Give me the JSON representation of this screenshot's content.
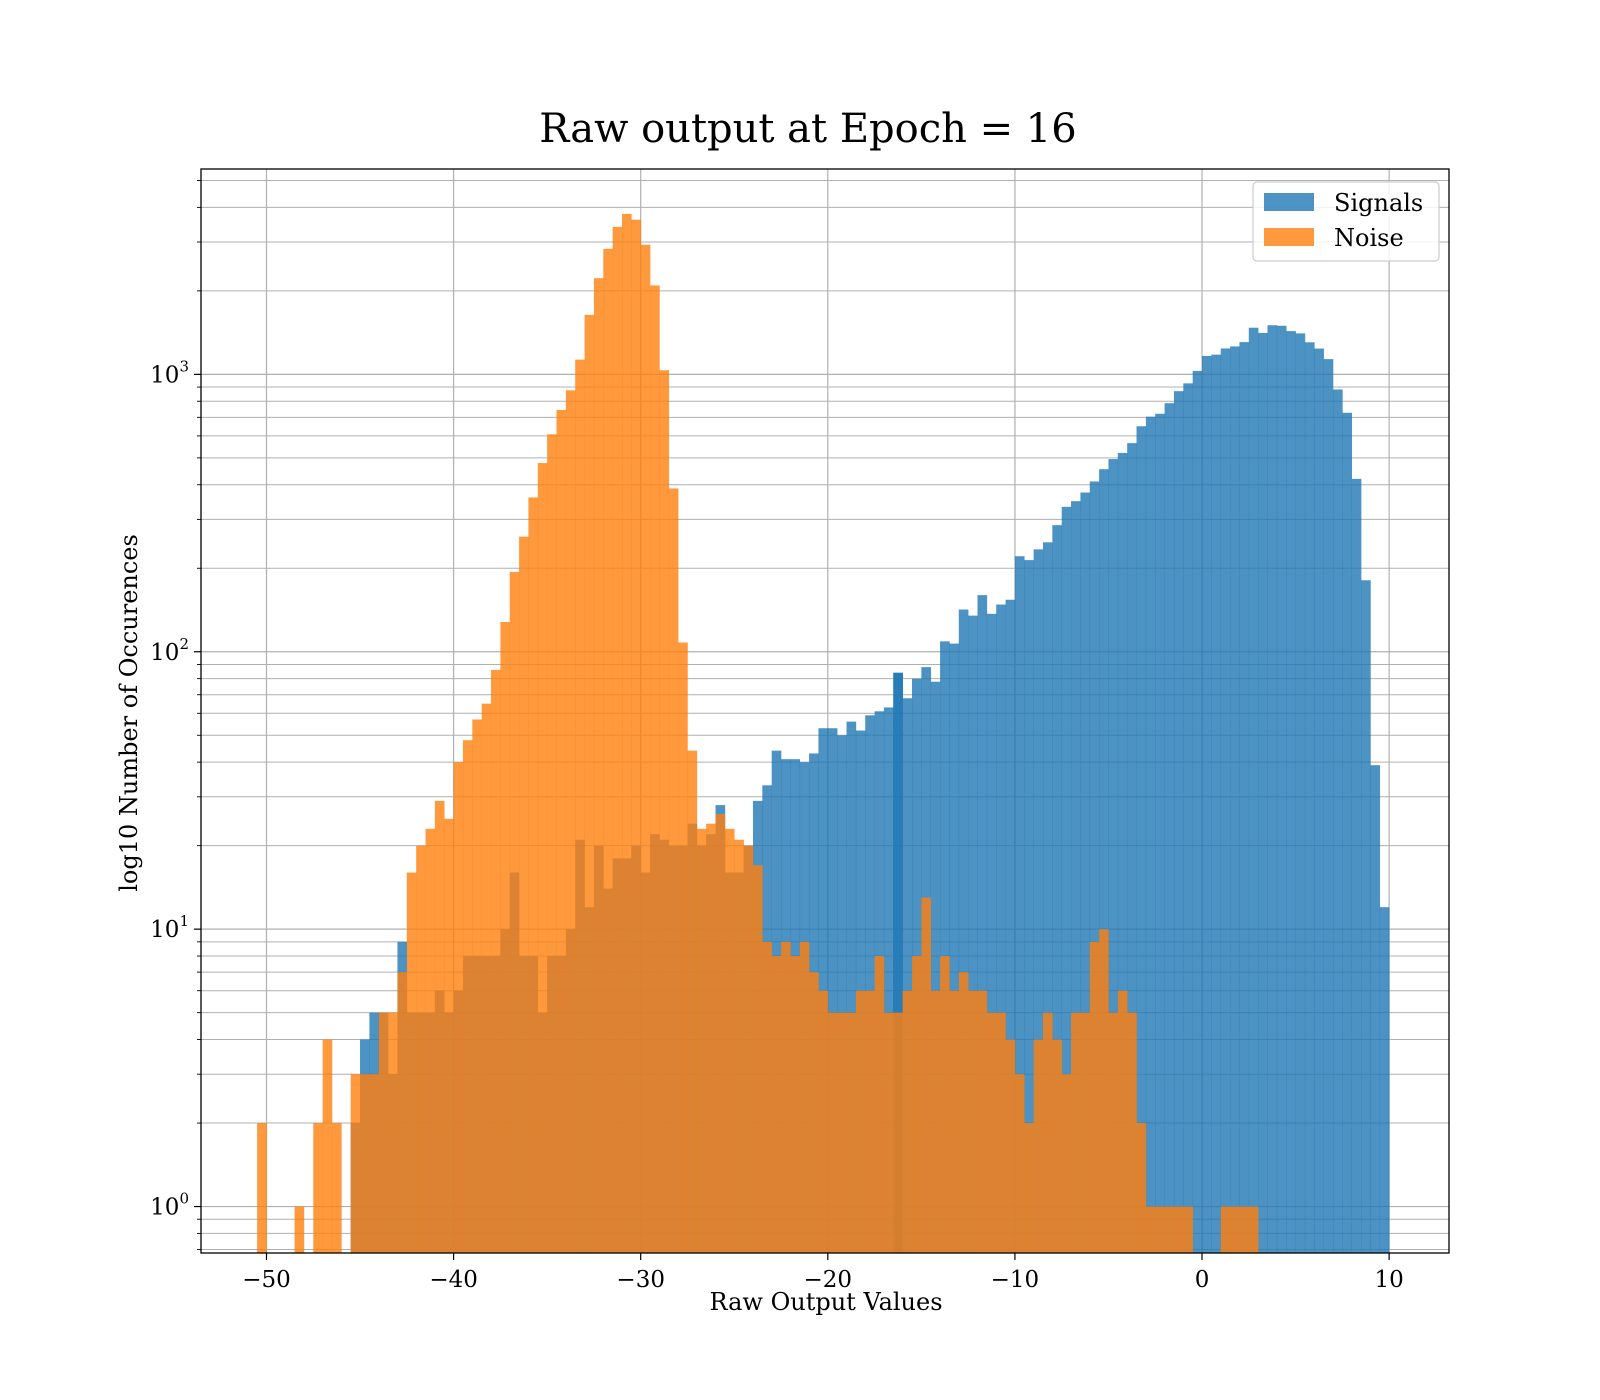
{
  "chart_data": {
    "type": "bar",
    "subtype": "overlaid-histogram",
    "title": "Raw output at Epoch = 16",
    "xlabel": "Raw Output Values",
    "ylabel": "log10 Number of Occurences",
    "xlim": [
      -53.5,
      13.2
    ],
    "ylim": [
      0.68,
      5500
    ],
    "yscale": "log",
    "grid": true,
    "legend_position": "top-right",
    "x_ticks": [
      {
        "value": -50,
        "label": "−50"
      },
      {
        "value": -40,
        "label": "−40"
      },
      {
        "value": -30,
        "label": "−30"
      },
      {
        "value": -20,
        "label": "−20"
      },
      {
        "value": -10,
        "label": "−10"
      },
      {
        "value": 0,
        "label": "0"
      },
      {
        "value": 10,
        "label": "10"
      }
    ],
    "y_ticks": [
      {
        "value": 1,
        "base": "10",
        "exp": "0"
      },
      {
        "value": 10,
        "base": "10",
        "exp": "1"
      },
      {
        "value": 100,
        "base": "10",
        "exp": "2"
      },
      {
        "value": 1000,
        "base": "10",
        "exp": "3"
      }
    ],
    "series": [
      {
        "name": "Signals",
        "color": "#1f77b4",
        "opacity": 0.8,
        "bins": [
          [
            -45.5,
            2
          ],
          [
            -45.0,
            4
          ],
          [
            -44.5,
            5
          ],
          [
            -44.0,
            5
          ],
          [
            -43.5,
            3
          ],
          [
            -43.0,
            9
          ],
          [
            -42.5,
            5
          ],
          [
            -42.0,
            5
          ],
          [
            -41.5,
            5
          ],
          [
            -41.0,
            6
          ],
          [
            -40.5,
            5
          ],
          [
            -40.0,
            6
          ],
          [
            -39.5,
            8
          ],
          [
            -39.0,
            8
          ],
          [
            -38.5,
            8
          ],
          [
            -38.0,
            8
          ],
          [
            -37.5,
            10
          ],
          [
            -37.0,
            16
          ],
          [
            -36.5,
            8
          ],
          [
            -36.0,
            8
          ],
          [
            -35.5,
            5
          ],
          [
            -35.0,
            8
          ],
          [
            -34.5,
            8
          ],
          [
            -34.0,
            10
          ],
          [
            -33.5,
            21
          ],
          [
            -33.0,
            12
          ],
          [
            -32.5,
            20
          ],
          [
            -32.0,
            14
          ],
          [
            -31.5,
            18
          ],
          [
            -31.0,
            18
          ],
          [
            -30.5,
            20
          ],
          [
            -30.0,
            16
          ],
          [
            -29.5,
            22
          ],
          [
            -29.0,
            21
          ],
          [
            -28.5,
            20
          ],
          [
            -28.0,
            20
          ],
          [
            -27.5,
            24
          ],
          [
            -27.0,
            20
          ],
          [
            -26.5,
            22
          ],
          [
            -26.0,
            28
          ],
          [
            -25.5,
            16
          ],
          [
            -25.0,
            16
          ],
          [
            -24.5,
            20
          ],
          [
            -24.0,
            29
          ],
          [
            -23.5,
            33
          ],
          [
            -23.0,
            44
          ],
          [
            -22.5,
            41
          ],
          [
            -22.0,
            41
          ],
          [
            -21.5,
            40
          ],
          [
            -21.0,
            43
          ],
          [
            -20.5,
            53
          ],
          [
            -20.0,
            53
          ],
          [
            -19.5,
            50
          ],
          [
            -19.0,
            56
          ],
          [
            -18.5,
            52
          ],
          [
            -18.0,
            59
          ],
          [
            -17.5,
            61
          ],
          [
            -17.0,
            63
          ],
          [
            -16.5,
            84
          ],
          [
            -16.5,
            84
          ],
          [
            -16.0,
            68
          ],
          [
            -15.5,
            80
          ],
          [
            -15.0,
            88
          ],
          [
            -14.5,
            78
          ],
          [
            -14.0,
            109
          ],
          [
            -13.5,
            107
          ],
          [
            -13.0,
            142
          ],
          [
            -12.5,
            135
          ],
          [
            -12.0,
            160
          ],
          [
            -11.5,
            137
          ],
          [
            -11.0,
            148
          ],
          [
            -10.5,
            154
          ],
          [
            -10.0,
            221
          ],
          [
            -9.5,
            214
          ],
          [
            -9.0,
            234
          ],
          [
            -8.5,
            248
          ],
          [
            -8.0,
            286
          ],
          [
            -7.5,
            333
          ],
          [
            -7.0,
            349
          ],
          [
            -6.5,
            375
          ],
          [
            -6.0,
            411
          ],
          [
            -5.5,
            455
          ],
          [
            -5.0,
            495
          ],
          [
            -4.5,
            521
          ],
          [
            -4.0,
            565
          ],
          [
            -3.5,
            650
          ],
          [
            -3.0,
            704
          ],
          [
            -2.5,
            721
          ],
          [
            -2.0,
            787
          ],
          [
            -1.5,
            870
          ],
          [
            -1.0,
            928
          ],
          [
            -0.5,
            1029
          ],
          [
            0.0,
            1165
          ],
          [
            0.5,
            1178
          ],
          [
            1.0,
            1240
          ],
          [
            1.5,
            1261
          ],
          [
            2.0,
            1307
          ],
          [
            2.5,
            1473
          ],
          [
            3.0,
            1410
          ],
          [
            3.5,
            1504
          ],
          [
            4.0,
            1497
          ],
          [
            4.5,
            1432
          ],
          [
            5.0,
            1405
          ],
          [
            5.5,
            1305
          ],
          [
            6.0,
            1239
          ],
          [
            6.5,
            1135
          ],
          [
            7.0,
            882
          ],
          [
            7.5,
            727
          ],
          [
            8.0,
            420
          ],
          [
            8.5,
            181
          ],
          [
            9.0,
            39
          ],
          [
            9.5,
            12
          ]
        ]
      },
      {
        "name": "Noise",
        "color": "#ff7f0e",
        "opacity": 0.8,
        "bins": [
          [
            -50.5,
            2
          ],
          [
            -48.5,
            1
          ],
          [
            -47.5,
            2
          ],
          [
            -47.0,
            4
          ],
          [
            -46.5,
            2
          ],
          [
            -45.5,
            3
          ],
          [
            -45.0,
            3
          ],
          [
            -44.5,
            3
          ],
          [
            -44.0,
            5
          ],
          [
            -43.5,
            5
          ],
          [
            -43.0,
            7
          ],
          [
            -42.5,
            16
          ],
          [
            -42.0,
            20
          ],
          [
            -41.5,
            23
          ],
          [
            -41.0,
            29
          ],
          [
            -40.5,
            25
          ],
          [
            -40.0,
            40
          ],
          [
            -39.5,
            48
          ],
          [
            -39.0,
            57
          ],
          [
            -38.5,
            65
          ],
          [
            -38.0,
            86
          ],
          [
            -37.5,
            128
          ],
          [
            -37.0,
            194
          ],
          [
            -36.5,
            260
          ],
          [
            -36.0,
            360
          ],
          [
            -35.5,
            479
          ],
          [
            -35.0,
            608
          ],
          [
            -34.5,
            744
          ],
          [
            -34.0,
            876
          ],
          [
            -33.5,
            1130
          ],
          [
            -33.0,
            1638
          ],
          [
            -32.5,
            2222
          ],
          [
            -32.0,
            2835
          ],
          [
            -31.5,
            3402
          ],
          [
            -31.0,
            3789
          ],
          [
            -30.5,
            3612
          ],
          [
            -30.0,
            2932
          ],
          [
            -29.5,
            2092
          ],
          [
            -29.0,
            1035
          ],
          [
            -28.5,
            388
          ],
          [
            -28.0,
            108
          ],
          [
            -27.5,
            44
          ],
          [
            -27.0,
            23
          ],
          [
            -26.5,
            24
          ],
          [
            -26.0,
            26
          ],
          [
            -25.5,
            23
          ],
          [
            -25.0,
            21
          ],
          [
            -24.5,
            20
          ],
          [
            -24.0,
            17
          ],
          [
            -23.5,
            9
          ],
          [
            -23.0,
            8
          ],
          [
            -22.5,
            9
          ],
          [
            -22.0,
            8
          ],
          [
            -21.5,
            9
          ],
          [
            -21.0,
            7
          ],
          [
            -20.5,
            6
          ],
          [
            -20.0,
            5
          ],
          [
            -19.5,
            5
          ],
          [
            -19.0,
            5
          ],
          [
            -18.5,
            6
          ],
          [
            -18.0,
            6
          ],
          [
            -17.5,
            8
          ],
          [
            -17.0,
            5
          ],
          [
            -16.5,
            5
          ],
          [
            -16.0,
            6
          ],
          [
            -15.5,
            8
          ],
          [
            -15.0,
            13
          ],
          [
            -14.5,
            6
          ],
          [
            -14.0,
            8
          ],
          [
            -13.5,
            6
          ],
          [
            -13.0,
            7
          ],
          [
            -12.5,
            6
          ],
          [
            -12.0,
            6
          ],
          [
            -11.5,
            5
          ],
          [
            -11.0,
            5
          ],
          [
            -10.5,
            4
          ],
          [
            -10.0,
            3
          ],
          [
            -9.5,
            2
          ],
          [
            -9.0,
            4
          ],
          [
            -8.5,
            5
          ],
          [
            -8.0,
            4
          ],
          [
            -7.5,
            3
          ],
          [
            -7.0,
            5
          ],
          [
            -6.5,
            5
          ],
          [
            -6.0,
            9
          ],
          [
            -5.5,
            10
          ],
          [
            -5.0,
            5
          ],
          [
            -4.5,
            6
          ],
          [
            -4.0,
            5
          ],
          [
            -3.5,
            2
          ],
          [
            -3.0,
            1
          ],
          [
            -2.5,
            1
          ],
          [
            -2.0,
            1
          ],
          [
            -1.5,
            1
          ],
          [
            -1.0,
            1
          ],
          [
            1.0,
            1
          ],
          [
            1.5,
            1
          ],
          [
            2.0,
            1
          ],
          [
            2.5,
            1
          ]
        ]
      }
    ]
  }
}
